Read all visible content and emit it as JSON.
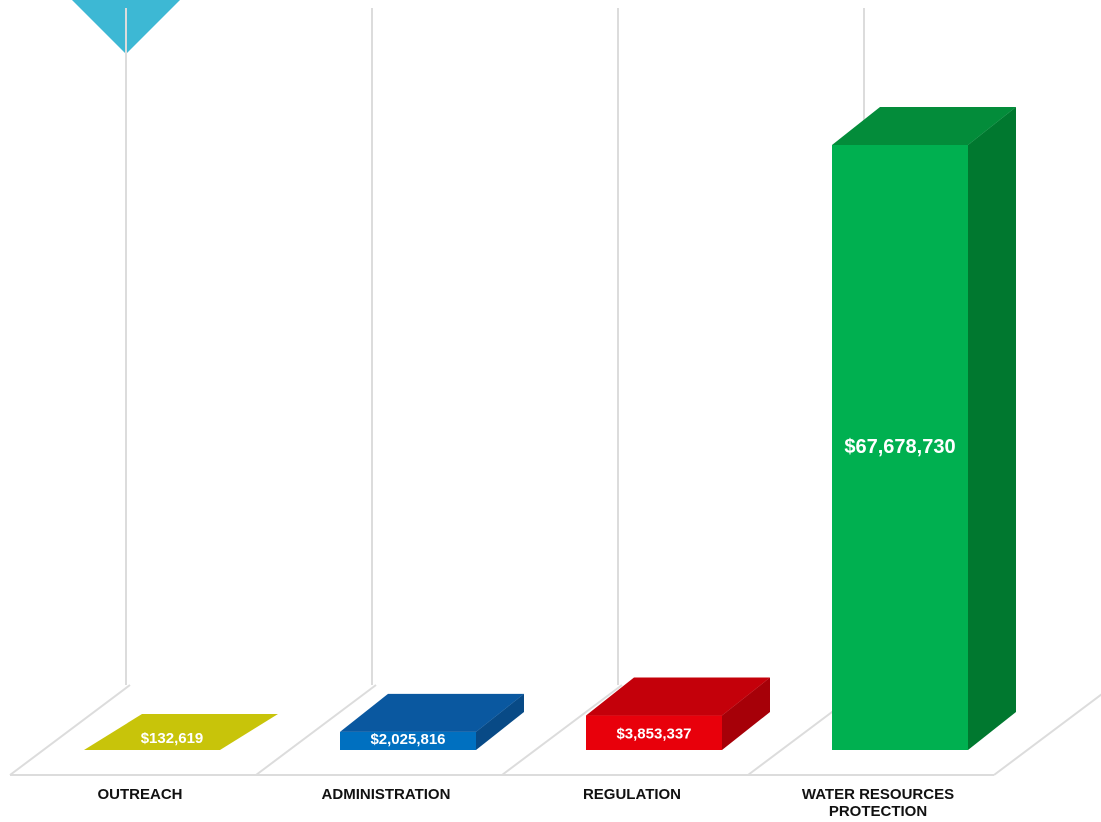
{
  "chart_data": {
    "type": "bar",
    "style": "3d-column",
    "categories": [
      "OUTREACH",
      "ADMINISTRATION",
      "REGULATION",
      "WATER RESOURCES PROTECTION"
    ],
    "category_lines": [
      [
        "OUTREACH"
      ],
      [
        "ADMINISTRATION"
      ],
      [
        "REGULATION"
      ],
      [
        "WATER RESOURCES",
        "PROTECTION"
      ]
    ],
    "values": [
      132619,
      2025816,
      3853337,
      67678730
    ],
    "value_labels": [
      "$132,619",
      "$2,025,816",
      "$3,853,337",
      "$67,678,730"
    ],
    "colors": [
      "#c8c40a",
      "#0070c0",
      "#e8000b",
      "#00b050"
    ],
    "side_colors": [
      "#8c8a06",
      "#084a86",
      "#a60008",
      "#00782f"
    ],
    "top_colors": [
      "#d6d21c",
      "#0a58a0",
      "#c4000a",
      "#038c3a"
    ],
    "title": "",
    "xlabel": "",
    "ylabel": "",
    "grid": true,
    "legend": "none"
  },
  "accent": {
    "corner_triangle_color": "#3db8d4"
  }
}
